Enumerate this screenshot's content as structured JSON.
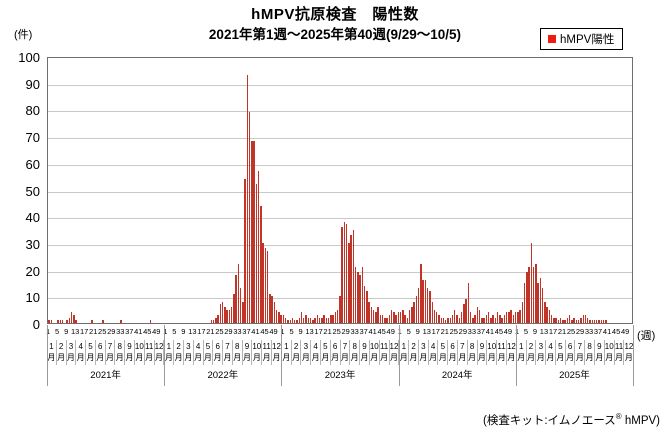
{
  "title": "hMPV抗原検査　陽性数",
  "subtitle": "2021年第1週～2025年第40週(9/29～10/5)",
  "y_axis_unit": "(件)",
  "x_axis_unit": "(週)",
  "legend": {
    "label": "hMPV陽性",
    "marker_color": "#ee1c10"
  },
  "footnote": {
    "prefix": "(検査キット:イムノエース",
    "sup": "®",
    "suffix": "  hMPV)"
  },
  "colors": {
    "bar_fill": "#c13428",
    "gridline": "#c9c9c9",
    "plot_border": "#6e6e6e",
    "separator": "#9b9b9b"
  },
  "chart_data": {
    "type": "bar",
    "title": "hMPV抗原検査 陽性数",
    "subtitle": "2021年第1週～2025年第40週(9/29～10/5)",
    "ylabel": "(件)",
    "xlabel": "(週)",
    "ylim": [
      0,
      100
    ],
    "ytick_interval": 10,
    "grid": true,
    "legend_position": "top-right",
    "series_name": "hMPV陽性",
    "weeks_per_year": 52,
    "week_tick_labels": [
      "1",
      "5",
      "9",
      "13",
      "17",
      "21",
      "25",
      "29",
      "33",
      "37",
      "41",
      "45",
      "49"
    ],
    "month_labels": [
      "1月",
      "2月",
      "3月",
      "4月",
      "5月",
      "6月",
      "7月",
      "8月",
      "9月",
      "10月",
      "11月",
      "12月"
    ],
    "years": [
      {
        "label": "2021年",
        "values": [
          1,
          1,
          0,
          0,
          1,
          1,
          1,
          0,
          1,
          2,
          4,
          3,
          1,
          0,
          0,
          0,
          0,
          0,
          0,
          1,
          0,
          0,
          0,
          0,
          1,
          0,
          0,
          0,
          0,
          0,
          0,
          0,
          1,
          0,
          0,
          0,
          0,
          0,
          0,
          0,
          0,
          0,
          0,
          0,
          0,
          1,
          0,
          0,
          0,
          0,
          0,
          0
        ]
      },
      {
        "label": "2022年",
        "values": [
          0,
          0,
          0,
          0,
          0,
          0,
          0,
          0,
          0,
          0,
          0,
          0,
          0,
          0,
          0,
          0,
          0,
          0,
          0,
          0,
          1,
          1,
          2,
          3,
          7,
          8,
          6,
          5,
          5,
          6,
          11,
          18,
          22,
          13,
          8,
          54,
          93,
          79,
          68,
          68,
          52,
          57,
          44,
          30,
          28,
          27,
          11,
          10,
          8,
          5,
          4,
          3
        ]
      },
      {
        "label": "2023年",
        "values": [
          3,
          2,
          1,
          1,
          2,
          1,
          1,
          2,
          4,
          2,
          3,
          2,
          2,
          1,
          2,
          3,
          2,
          2,
          3,
          2,
          2,
          3,
          3,
          4,
          5,
          10,
          36,
          38,
          37,
          30,
          33,
          35,
          21,
          19,
          18,
          21,
          14,
          12,
          8,
          6,
          5,
          4,
          6,
          3,
          3,
          2,
          2,
          3,
          5,
          4,
          3,
          4
        ]
      },
      {
        "label": "2024年",
        "values": [
          4,
          5,
          3,
          2,
          5,
          6,
          8,
          10,
          13,
          22,
          16,
          16,
          13,
          12,
          8,
          5,
          4,
          3,
          2,
          2,
          1,
          2,
          2,
          3,
          5,
          3,
          2,
          4,
          7,
          9,
          15,
          4,
          2,
          3,
          6,
          5,
          2,
          2,
          3,
          4,
          2,
          3,
          2,
          4,
          3,
          2,
          3,
          4,
          4,
          5,
          3,
          4
        ]
      },
      {
        "label": "2025年",
        "values": [
          4,
          5,
          8,
          15,
          19,
          21,
          30,
          21,
          22,
          15,
          17,
          13,
          8,
          6,
          5,
          3,
          2,
          2,
          1,
          2,
          1,
          1,
          2,
          3,
          1,
          2,
          1,
          1,
          2,
          3,
          3,
          2,
          1,
          1,
          1,
          1,
          1,
          1,
          1,
          1
        ]
      }
    ]
  }
}
